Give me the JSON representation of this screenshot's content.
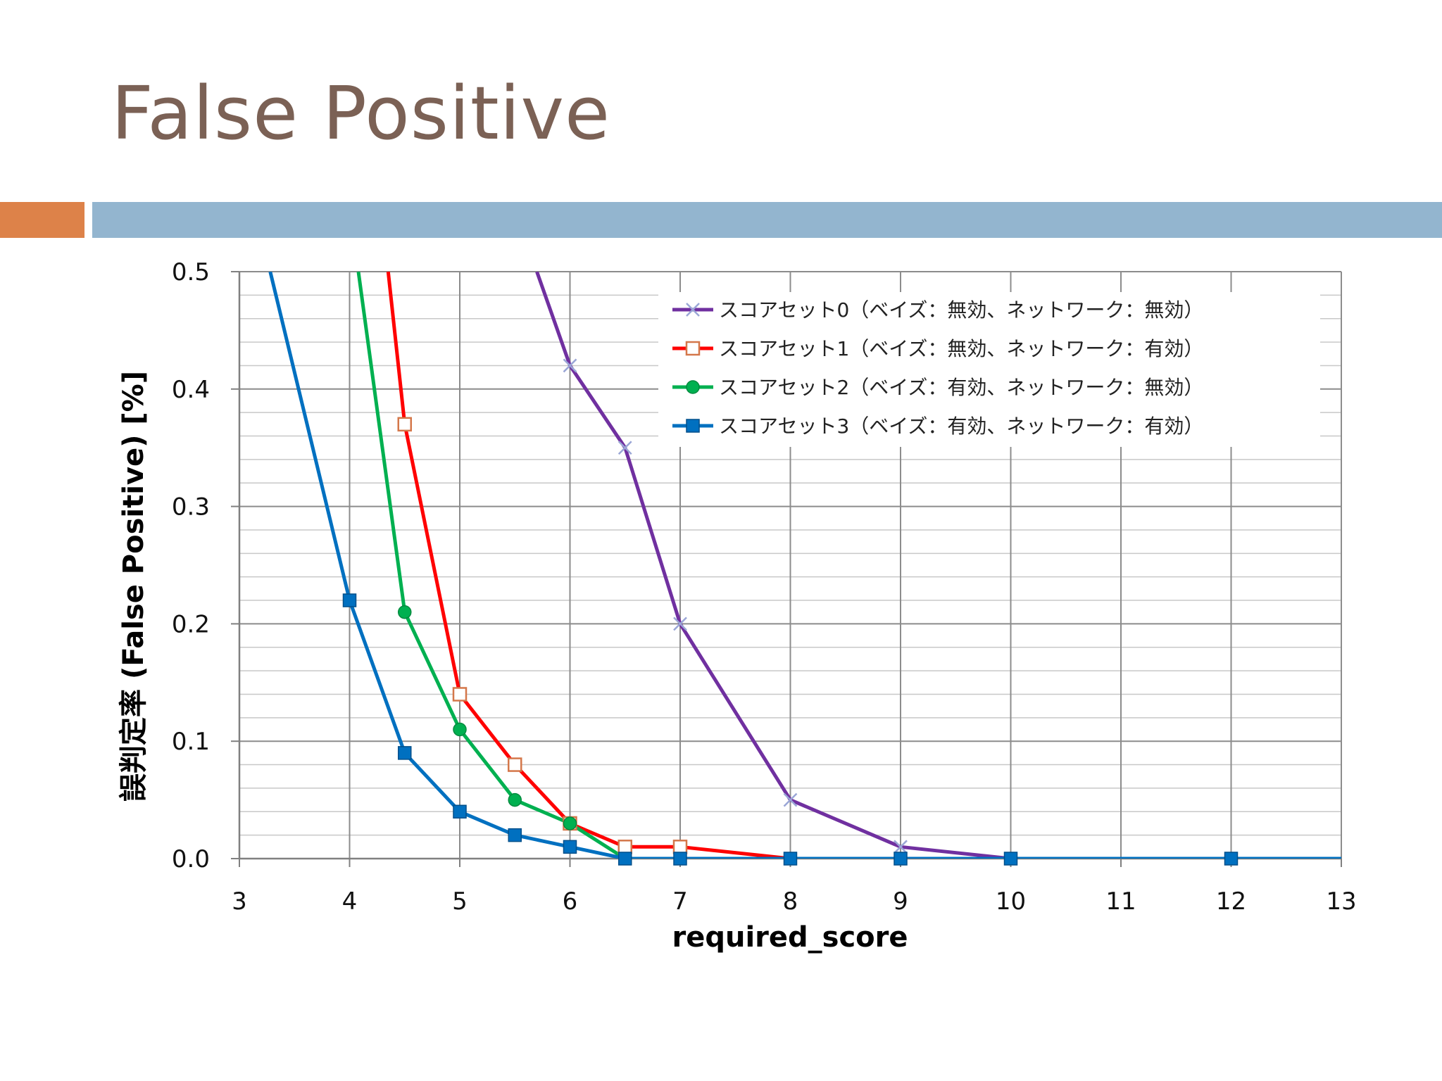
{
  "slide": {
    "title": "False Positive"
  },
  "chart_data": {
    "type": "line",
    "xlabel": "required_score",
    "ylabel": "誤判定率 (False Positive) [%]",
    "xlim": [
      3,
      13
    ],
    "ylim": [
      0,
      0.5
    ],
    "xticks": [
      "3",
      "4",
      "5",
      "6",
      "7",
      "8",
      "9",
      "10",
      "11",
      "12",
      "13"
    ],
    "yticks": [
      "0.0",
      "0.1",
      "0.2",
      "0.3",
      "0.4",
      "0.5"
    ],
    "grid": true,
    "legend_position": "top-right",
    "series": [
      {
        "name": "スコアセット0（ベイズ：無効、ネットワーク：無効）",
        "color": "#7030a0",
        "marker": "x",
        "x": [
          5.7,
          6,
          6.5,
          7,
          8,
          9,
          10
        ],
        "y": [
          0.5,
          0.42,
          0.35,
          0.2,
          0.05,
          0.01,
          0.0
        ],
        "marked": [
          false,
          true,
          true,
          true,
          true,
          true,
          false
        ]
      },
      {
        "name": "スコアセット1（ベイズ：無効、ネットワーク：有効）",
        "color": "#ff0000",
        "marker": "open-square",
        "x": [
          4.35,
          4.5,
          5,
          5.5,
          6,
          6.5,
          7,
          8
        ],
        "y": [
          0.5,
          0.37,
          0.14,
          0.08,
          0.03,
          0.01,
          0.01,
          0.0
        ],
        "marked": [
          false,
          true,
          true,
          true,
          true,
          true,
          true,
          false
        ]
      },
      {
        "name": "スコアセット2（ベイズ：有効、ネットワーク：無効）",
        "color": "#00b050",
        "marker": "circle",
        "x": [
          4.08,
          4.5,
          5,
          5.5,
          6,
          6.5
        ],
        "y": [
          0.5,
          0.21,
          0.11,
          0.05,
          0.03,
          0.0
        ],
        "marked": [
          false,
          true,
          true,
          true,
          true,
          false
        ]
      },
      {
        "name": "スコアセット3（ベイズ：有効、ネットワーク：有効）",
        "color": "#0070c0",
        "marker": "filled-square",
        "x": [
          3.28,
          4,
          4.5,
          5,
          5.5,
          6,
          6.5,
          7,
          8,
          9,
          10,
          12,
          13
        ],
        "y": [
          0.5,
          0.22,
          0.09,
          0.04,
          0.02,
          0.01,
          0.0,
          0.0,
          0.0,
          0.0,
          0.0,
          0.0,
          0.0
        ],
        "marked": [
          false,
          true,
          true,
          true,
          true,
          true,
          true,
          true,
          true,
          true,
          true,
          true,
          false
        ]
      }
    ]
  }
}
